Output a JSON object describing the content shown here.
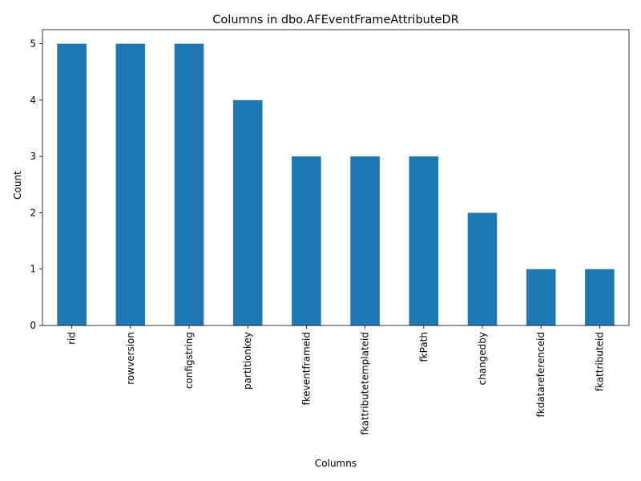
{
  "chart_data": {
    "type": "bar",
    "title": "Columns in dbo.AFEventFrameAttributeDR",
    "xlabel": "Columns",
    "ylabel": "Count",
    "categories": [
      "rid",
      "rowversion",
      "configstring",
      "partitionkey",
      "fkeventframeid",
      "fkattributetemplateid",
      "fkPath",
      "changedby",
      "fkdatareferenceid",
      "fkattributeid"
    ],
    "values": [
      5,
      5,
      5,
      4,
      3,
      3,
      3,
      2,
      1,
      1
    ],
    "ylim": [
      0,
      5.25
    ],
    "yticks": [
      0,
      1,
      2,
      3,
      4,
      5
    ],
    "grid": false,
    "legend": "none",
    "bar_color": "#1f77b4"
  }
}
